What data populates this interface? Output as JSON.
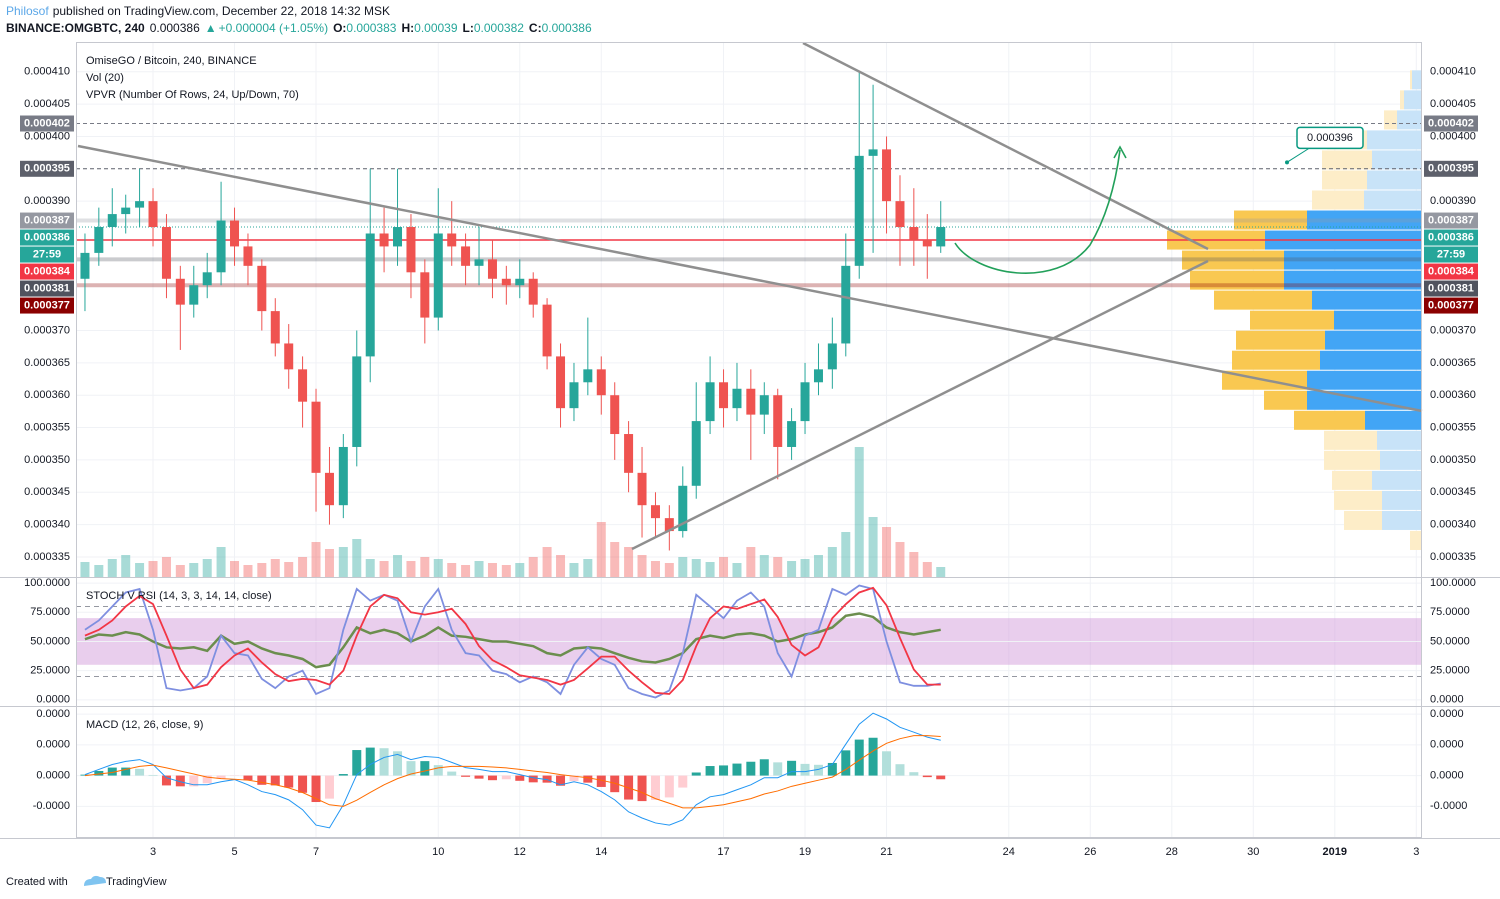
{
  "header": {
    "author": "Philosof",
    "published": "published on TradingView.com, December 22, 2018 14:32 MSK",
    "symbol": "BINANCE:OMGBTC, 240",
    "change": "+0.000004 (+1.05%)",
    "o": "O:",
    "h": "H:",
    "l": "L:",
    "c": "C:"
  },
  "footer": {
    "created": "Created with",
    "brand": "TradingView"
  },
  "chart_data": [
    {
      "type": "candlestick",
      "title": "OmiseGO / Bitcoin, 240, BINANCE",
      "indicators": [
        "Vol (20)",
        "VPVR (Number Of Rows, 24, Up/Down, 70)"
      ],
      "x": [
        1.33,
        1.67,
        2.0,
        2.33,
        2.67,
        3.0,
        3.33,
        3.67,
        4.0,
        4.33,
        4.67,
        5.0,
        5.33,
        5.67,
        6.0,
        6.33,
        6.67,
        7.0,
        7.33,
        7.67,
        8.0,
        8.33,
        8.67,
        9.0,
        9.33,
        9.67,
        10.0,
        10.33,
        10.67,
        11.0,
        11.33,
        11.67,
        12.0,
        12.33,
        12.67,
        13.0,
        13.33,
        13.67,
        14.0,
        14.33,
        14.67,
        15.0,
        15.33,
        15.67,
        16.0,
        16.33,
        16.67,
        17.0,
        17.33,
        17.67,
        18.0,
        18.33,
        18.67,
        19.0,
        19.33,
        19.67,
        20.0,
        20.33,
        20.67,
        21.0,
        21.33,
        21.67,
        22.0,
        22.33
      ],
      "open": [
        0.000378,
        0.000382,
        0.000386,
        0.000388,
        0.000389,
        0.00039,
        0.000386,
        0.000378,
        0.000374,
        0.000377,
        0.000379,
        0.000387,
        0.000383,
        0.00038,
        0.000373,
        0.000368,
        0.000364,
        0.000359,
        0.000348,
        0.000343,
        0.000352,
        0.000366,
        0.000385,
        0.000383,
        0.000386,
        0.000379,
        0.000372,
        0.000385,
        0.000383,
        0.00038,
        0.000381,
        0.000378,
        0.000377,
        0.000378,
        0.000374,
        0.000366,
        0.000358,
        0.000362,
        0.000364,
        0.00036,
        0.000354,
        0.000348,
        0.000343,
        0.000341,
        0.000339,
        0.000346,
        0.000356,
        0.000362,
        0.000358,
        0.000361,
        0.000357,
        0.00036,
        0.000352,
        0.000356,
        0.000362,
        0.000364,
        0.000368,
        0.00038,
        0.000397,
        0.000398,
        0.00039,
        0.000386,
        0.000384,
        0.000383
      ],
      "high": [
        0.000385,
        0.000389,
        0.000392,
        0.000391,
        0.000395,
        0.000392,
        0.000388,
        0.00038,
        0.00038,
        0.000382,
        0.000393,
        0.000389,
        0.000385,
        0.000381,
        0.000375,
        0.000371,
        0.000366,
        0.000361,
        0.000352,
        0.000354,
        0.00037,
        0.000395,
        0.000389,
        0.000395,
        0.000388,
        0.000381,
        0.000392,
        0.00039,
        0.000385,
        0.000386,
        0.000384,
        0.00038,
        0.000381,
        0.000379,
        0.000375,
        0.000368,
        0.000365,
        0.000372,
        0.000366,
        0.000362,
        0.000356,
        0.000352,
        0.000345,
        0.000343,
        0.000349,
        0.000362,
        0.000366,
        0.000364,
        0.000365,
        0.000364,
        0.000362,
        0.000361,
        0.000358,
        0.000365,
        0.000368,
        0.000372,
        0.000385,
        0.00041,
        0.000408,
        0.0004,
        0.000394,
        0.000392,
        0.000388,
        0.00039
      ],
      "low": [
        0.000373,
        0.00038,
        0.000383,
        0.000385,
        0.000386,
        0.000383,
        0.000375,
        0.000367,
        0.000372,
        0.000375,
        0.000377,
        0.00038,
        0.000377,
        0.00037,
        0.000366,
        0.000361,
        0.000355,
        0.000342,
        0.00034,
        0.000341,
        0.000349,
        0.000362,
        0.000379,
        0.00038,
        0.000375,
        0.000368,
        0.00037,
        0.00038,
        0.000377,
        0.000377,
        0.000375,
        0.000374,
        0.000375,
        0.000372,
        0.000364,
        0.000355,
        0.000356,
        0.00036,
        0.000357,
        0.00035,
        0.000345,
        0.000338,
        0.000338,
        0.000336,
        0.000338,
        0.000344,
        0.000354,
        0.000355,
        0.000356,
        0.00035,
        0.000354,
        0.000347,
        0.00035,
        0.000354,
        0.00036,
        0.000361,
        0.000366,
        0.000378,
        0.000382,
        0.000385,
        0.00038,
        0.00038,
        0.000378,
        0.000382
      ],
      "close": [
        0.000382,
        0.000386,
        0.000388,
        0.000389,
        0.00039,
        0.000386,
        0.000378,
        0.000374,
        0.000377,
        0.000379,
        0.000387,
        0.000383,
        0.00038,
        0.000373,
        0.000368,
        0.000364,
        0.000359,
        0.000348,
        0.000343,
        0.000352,
        0.000366,
        0.000385,
        0.000383,
        0.000386,
        0.000379,
        0.000372,
        0.000385,
        0.000383,
        0.00038,
        0.000381,
        0.000378,
        0.000377,
        0.000378,
        0.000374,
        0.000366,
        0.000358,
        0.000362,
        0.000364,
        0.00036,
        0.000354,
        0.000348,
        0.000343,
        0.000341,
        0.000339,
        0.000346,
        0.000356,
        0.000362,
        0.000358,
        0.000361,
        0.000357,
        0.00036,
        0.000352,
        0.000356,
        0.000362,
        0.000364,
        0.000368,
        0.00038,
        0.000397,
        0.000398,
        0.00039,
        0.000386,
        0.000384,
        0.000383,
        0.000386
      ],
      "volume": [
        15,
        12,
        18,
        22,
        14,
        16,
        20,
        12,
        14,
        18,
        30,
        16,
        12,
        14,
        18,
        15,
        20,
        35,
        28,
        30,
        38,
        18,
        16,
        22,
        16,
        20,
        18,
        14,
        12,
        16,
        14,
        12,
        14,
        20,
        30,
        22,
        14,
        18,
        55,
        35,
        30,
        22,
        16,
        14,
        20,
        18,
        15,
        20,
        14,
        30,
        22,
        20,
        16,
        18,
        22,
        30,
        45,
        130,
        60,
        50,
        35,
        25,
        15,
        10
      ],
      "up_color": "#26a69a",
      "down_color": "#ef5350",
      "xlim": [
        1.11,
        34.14
      ],
      "xticks": [
        3,
        5,
        7,
        10,
        12,
        14,
        17,
        19,
        21,
        24,
        26,
        28,
        30,
        {
          "value": 32,
          "label": "2019"
        },
        {
          "value": 34,
          "label": "3"
        }
      ],
      "ylim": [
        0.0003319,
        0.0004146
      ],
      "yticks": [
        {
          "value": 0.00041,
          "label": "0.000410"
        },
        {
          "value": 0.000405,
          "label": "0.000405"
        },
        {
          "value": 0.0004,
          "label": "0.000400"
        },
        {
          "value": 0.00039,
          "label": "0.000390"
        },
        {
          "value": 0.00037,
          "label": "0.000370"
        },
        {
          "value": 0.000365,
          "label": "0.000365"
        },
        {
          "value": 0.00036,
          "label": "0.000360"
        },
        {
          "value": 0.000355,
          "label": "0.000355"
        },
        {
          "value": 0.00035,
          "label": "0.000350"
        },
        {
          "value": 0.000345,
          "label": "0.000345"
        },
        {
          "value": 0.00034,
          "label": "0.000340"
        },
        {
          "value": 0.000335,
          "label": "0.000335"
        }
      ],
      "grid": true,
      "levels": [
        {
          "value": 0.000402,
          "color": "#787b86",
          "style": "dashed"
        },
        {
          "value": 0.000395,
          "color": "#5d606b",
          "style": "dashed"
        },
        {
          "value": 0.000387,
          "color": "#9598a1",
          "style": "band"
        },
        {
          "value": 0.000386,
          "color": "#26a69a",
          "style": "dotted",
          "countdown": "27:59"
        },
        {
          "value": 0.000384,
          "color": "#f23645",
          "style": "solid"
        },
        {
          "value": 0.000381,
          "color": "#50535e",
          "style": "band"
        },
        {
          "value": 0.000377,
          "color": "#8b0000",
          "style": "band"
        }
      ],
      "annotations": [
        {
          "value": 0.000396,
          "color": "#089981"
        }
      ],
      "vpvr": {
        "price_range": [
          0.000336,
          0.0004103
        ],
        "value_area": [
          0.000355,
          0.000389
        ],
        "up": [
          0,
          40,
          40,
          50,
          42,
          45,
          57,
          115,
          115,
          102,
          97,
          88,
          110,
          138,
          138,
          157,
          115,
          58,
          55,
          50,
          55,
          25,
          18,
          10
        ],
        "down": [
          12,
          38,
          48,
          40,
          56,
          53,
          71,
          43,
          85,
          88,
          89,
          84,
          98,
          94,
          102,
          98,
          73,
          52,
          45,
          50,
          40,
          13,
          4,
          2
        ],
        "up_color": "#42a5f5",
        "down_color": "#f9c851",
        "up_color_light": "#c8e3f8",
        "down_color_light": "#fdedc8"
      }
    },
    {
      "type": "stoch_rsi",
      "title": "STOCH V RSI (14, 3, 3, 14, 14, close)",
      "ylim": [
        -5.3,
        104.4
      ],
      "yticks": [
        {
          "value": 100,
          "label": "100.0000"
        },
        {
          "value": 75,
          "label": "75.0000"
        },
        {
          "value": 50,
          "label": "50.0000"
        },
        {
          "value": 25,
          "label": "25.0000"
        },
        {
          "value": 0,
          "label": "0.0000"
        }
      ],
      "bands": [
        80,
        20
      ],
      "fill": [
        70,
        30
      ],
      "fill_color": "#ce93d8",
      "series": [
        {
          "color": "#6b8e4e",
          "values": [
            52,
            56,
            55,
            58,
            56,
            50,
            45,
            44,
            45,
            42,
            55,
            48,
            50,
            44,
            40,
            38,
            35,
            28,
            30,
            45,
            62,
            57,
            60,
            57,
            50,
            55,
            62,
            55,
            54,
            52,
            50,
            50,
            48,
            46,
            40,
            38,
            44,
            45,
            44,
            40,
            36,
            33,
            32,
            35,
            40,
            52,
            55,
            53,
            56,
            57,
            55,
            50,
            52,
            56,
            58,
            62,
            72,
            74,
            71,
            62,
            58,
            56,
            58,
            60
          ]
        },
        {
          "color": "#7e8fe0",
          "values": [
            60,
            68,
            80,
            92,
            95,
            60,
            10,
            8,
            10,
            20,
            55,
            40,
            38,
            18,
            10,
            20,
            25,
            5,
            10,
            60,
            95,
            85,
            90,
            85,
            50,
            80,
            95,
            60,
            40,
            38,
            25,
            22,
            15,
            20,
            15,
            5,
            30,
            45,
            35,
            30,
            10,
            5,
            2,
            8,
            40,
            90,
            80,
            70,
            85,
            92,
            80,
            40,
            20,
            55,
            60,
            95,
            90,
            98,
            95,
            50,
            15,
            12,
            12,
            14
          ]
        },
        {
          "color": "#f23645",
          "values": [
            55,
            60,
            68,
            80,
            89,
            82,
            55,
            26,
            10,
            13,
            28,
            38,
            44,
            32,
            22,
            16,
            18,
            17,
            13,
            25,
            55,
            80,
            90,
            87,
            75,
            73,
            75,
            78,
            65,
            46,
            34,
            28,
            21,
            19,
            17,
            13,
            17,
            27,
            37,
            37,
            25,
            15,
            6,
            5,
            17,
            46,
            70,
            80,
            78,
            82,
            86,
            71,
            47,
            38,
            45,
            70,
            82,
            92,
            96,
            81,
            53,
            26,
            13,
            13
          ]
        }
      ]
    },
    {
      "type": "macd",
      "title": "MACD (12, 26, close, 9)",
      "ylim": [
        -2.03e-06,
        2.23e-06
      ],
      "yticks": [
        {
          "value": 2e-06,
          "label": "0.0000"
        },
        {
          "value": 1e-06,
          "label": "0.0000"
        },
        {
          "value": 0,
          "label": "0.0000"
        },
        {
          "value": -1e-06,
          "label": "-0.0000"
        }
      ],
      "macd": {
        "color": "#2196f3",
        "values": [
          3e-08,
          2e-07,
          3.6e-07,
          4.6e-07,
          5.2e-07,
          3.6e-07,
          -7e-08,
          -2e-07,
          -3e-07,
          -3e-07,
          -2e-07,
          -1.3e-07,
          -3e-07,
          -5.2e-07,
          -6.2e-07,
          -7.9e-07,
          -1.11e-06,
          -1.61e-06,
          -1.7e-06,
          -9.5e-07,
          3e-08,
          3.6e-07,
          5.9e-07,
          6.9e-07,
          5.2e-07,
          6.2e-07,
          5.9e-07,
          4.3e-07,
          2.6e-07,
          2e-07,
          1.3e-07,
          1.3e-07,
          3e-08,
          -7e-08,
          -1.3e-07,
          -3e-07,
          -2e-07,
          -3e-07,
          -5.2e-07,
          -7.9e-07,
          -1.18e-06,
          -1.38e-06,
          -1.54e-06,
          -1.61e-06,
          -1.44e-06,
          -9.5e-07,
          -6.9e-07,
          -6.2e-07,
          -4.6e-07,
          -3e-07,
          -7e-08,
          -7e-08,
          1.3e-07,
          1.3e-07,
          2e-07,
          3.6e-07,
          1.02e-06,
          1.67e-06,
          2.03e-06,
          1.84e-06,
          1.57e-06,
          1.41e-06,
          1.25e-06,
          1.15e-06
        ]
      },
      "signal": {
        "color": "#ff6d00",
        "values": [
          0.0,
          5e-08,
          1e-07,
          2e-07,
          3e-07,
          3.4e-07,
          2.5e-07,
          1.5e-07,
          5e-08,
          -5e-08,
          -1e-07,
          -1.2e-07,
          -1.5e-07,
          -2.2e-07,
          -3e-07,
          -4e-07,
          -5.5e-07,
          -7.5e-07,
          -9.5e-07,
          -1e-06,
          -8e-07,
          -5.5e-07,
          -3e-07,
          -1e-07,
          5e-08,
          1.5e-07,
          2.5e-07,
          3e-07,
          3e-07,
          3e-07,
          2.8e-07,
          2.5e-07,
          2e-07,
          1.5e-07,
          1e-07,
          3e-08,
          -2e-08,
          -7e-08,
          -1.5e-07,
          -2.5e-07,
          -4e-07,
          -5.5e-07,
          -7.5e-07,
          -9e-07,
          -1.05e-06,
          -1.05e-06,
          -1e-06,
          -9.5e-07,
          -8.5e-07,
          -7.5e-07,
          -6e-07,
          -5e-07,
          -3.5e-07,
          -2.5e-07,
          -1.5e-07,
          -5e-08,
          2e-07,
          5e-07,
          8e-07,
          1.05e-06,
          1.2e-06,
          1.3e-06,
          1.3e-06,
          1.27e-06
        ]
      },
      "histogram": [
        3e-08,
        1.5e-07,
        2.6e-07,
        2.6e-07,
        2.2e-07,
        2e-08,
        -3.2e-07,
        -3.5e-07,
        -3.5e-07,
        -2.5e-07,
        -1e-07,
        -1e-08,
        -1.5e-07,
        -3e-07,
        -3.2e-07,
        -3.9e-07,
        -5.6e-07,
        -8.6e-07,
        -7.5e-07,
        5e-08,
        8.3e-07,
        9.1e-07,
        8.9e-07,
        7.9e-07,
        4.7e-07,
        4.7e-07,
        3.4e-07,
        1.3e-07,
        -4e-08,
        -1e-07,
        -1.5e-07,
        -1.2e-07,
        -1.7e-07,
        -2.2e-07,
        -2.3e-07,
        -3.3e-07,
        -1.8e-07,
        -2.3e-07,
        -3.7e-07,
        -5.4e-07,
        -7.8e-07,
        -8.3e-07,
        -7.9e-07,
        -7.1e-07,
        -3.9e-07,
        1e-07,
        3.1e-07,
        3.3e-07,
        3.9e-07,
        4.5e-07,
        5.3e-07,
        4.3e-07,
        4.8e-07,
        3.8e-07,
        3.5e-07,
        4.1e-07,
        8.2e-07,
        1.17e-06,
        1.23e-06,
        7.9e-07,
        3.7e-07,
        1.1e-07,
        -5e-08,
        -1.2e-07
      ]
    }
  ]
}
